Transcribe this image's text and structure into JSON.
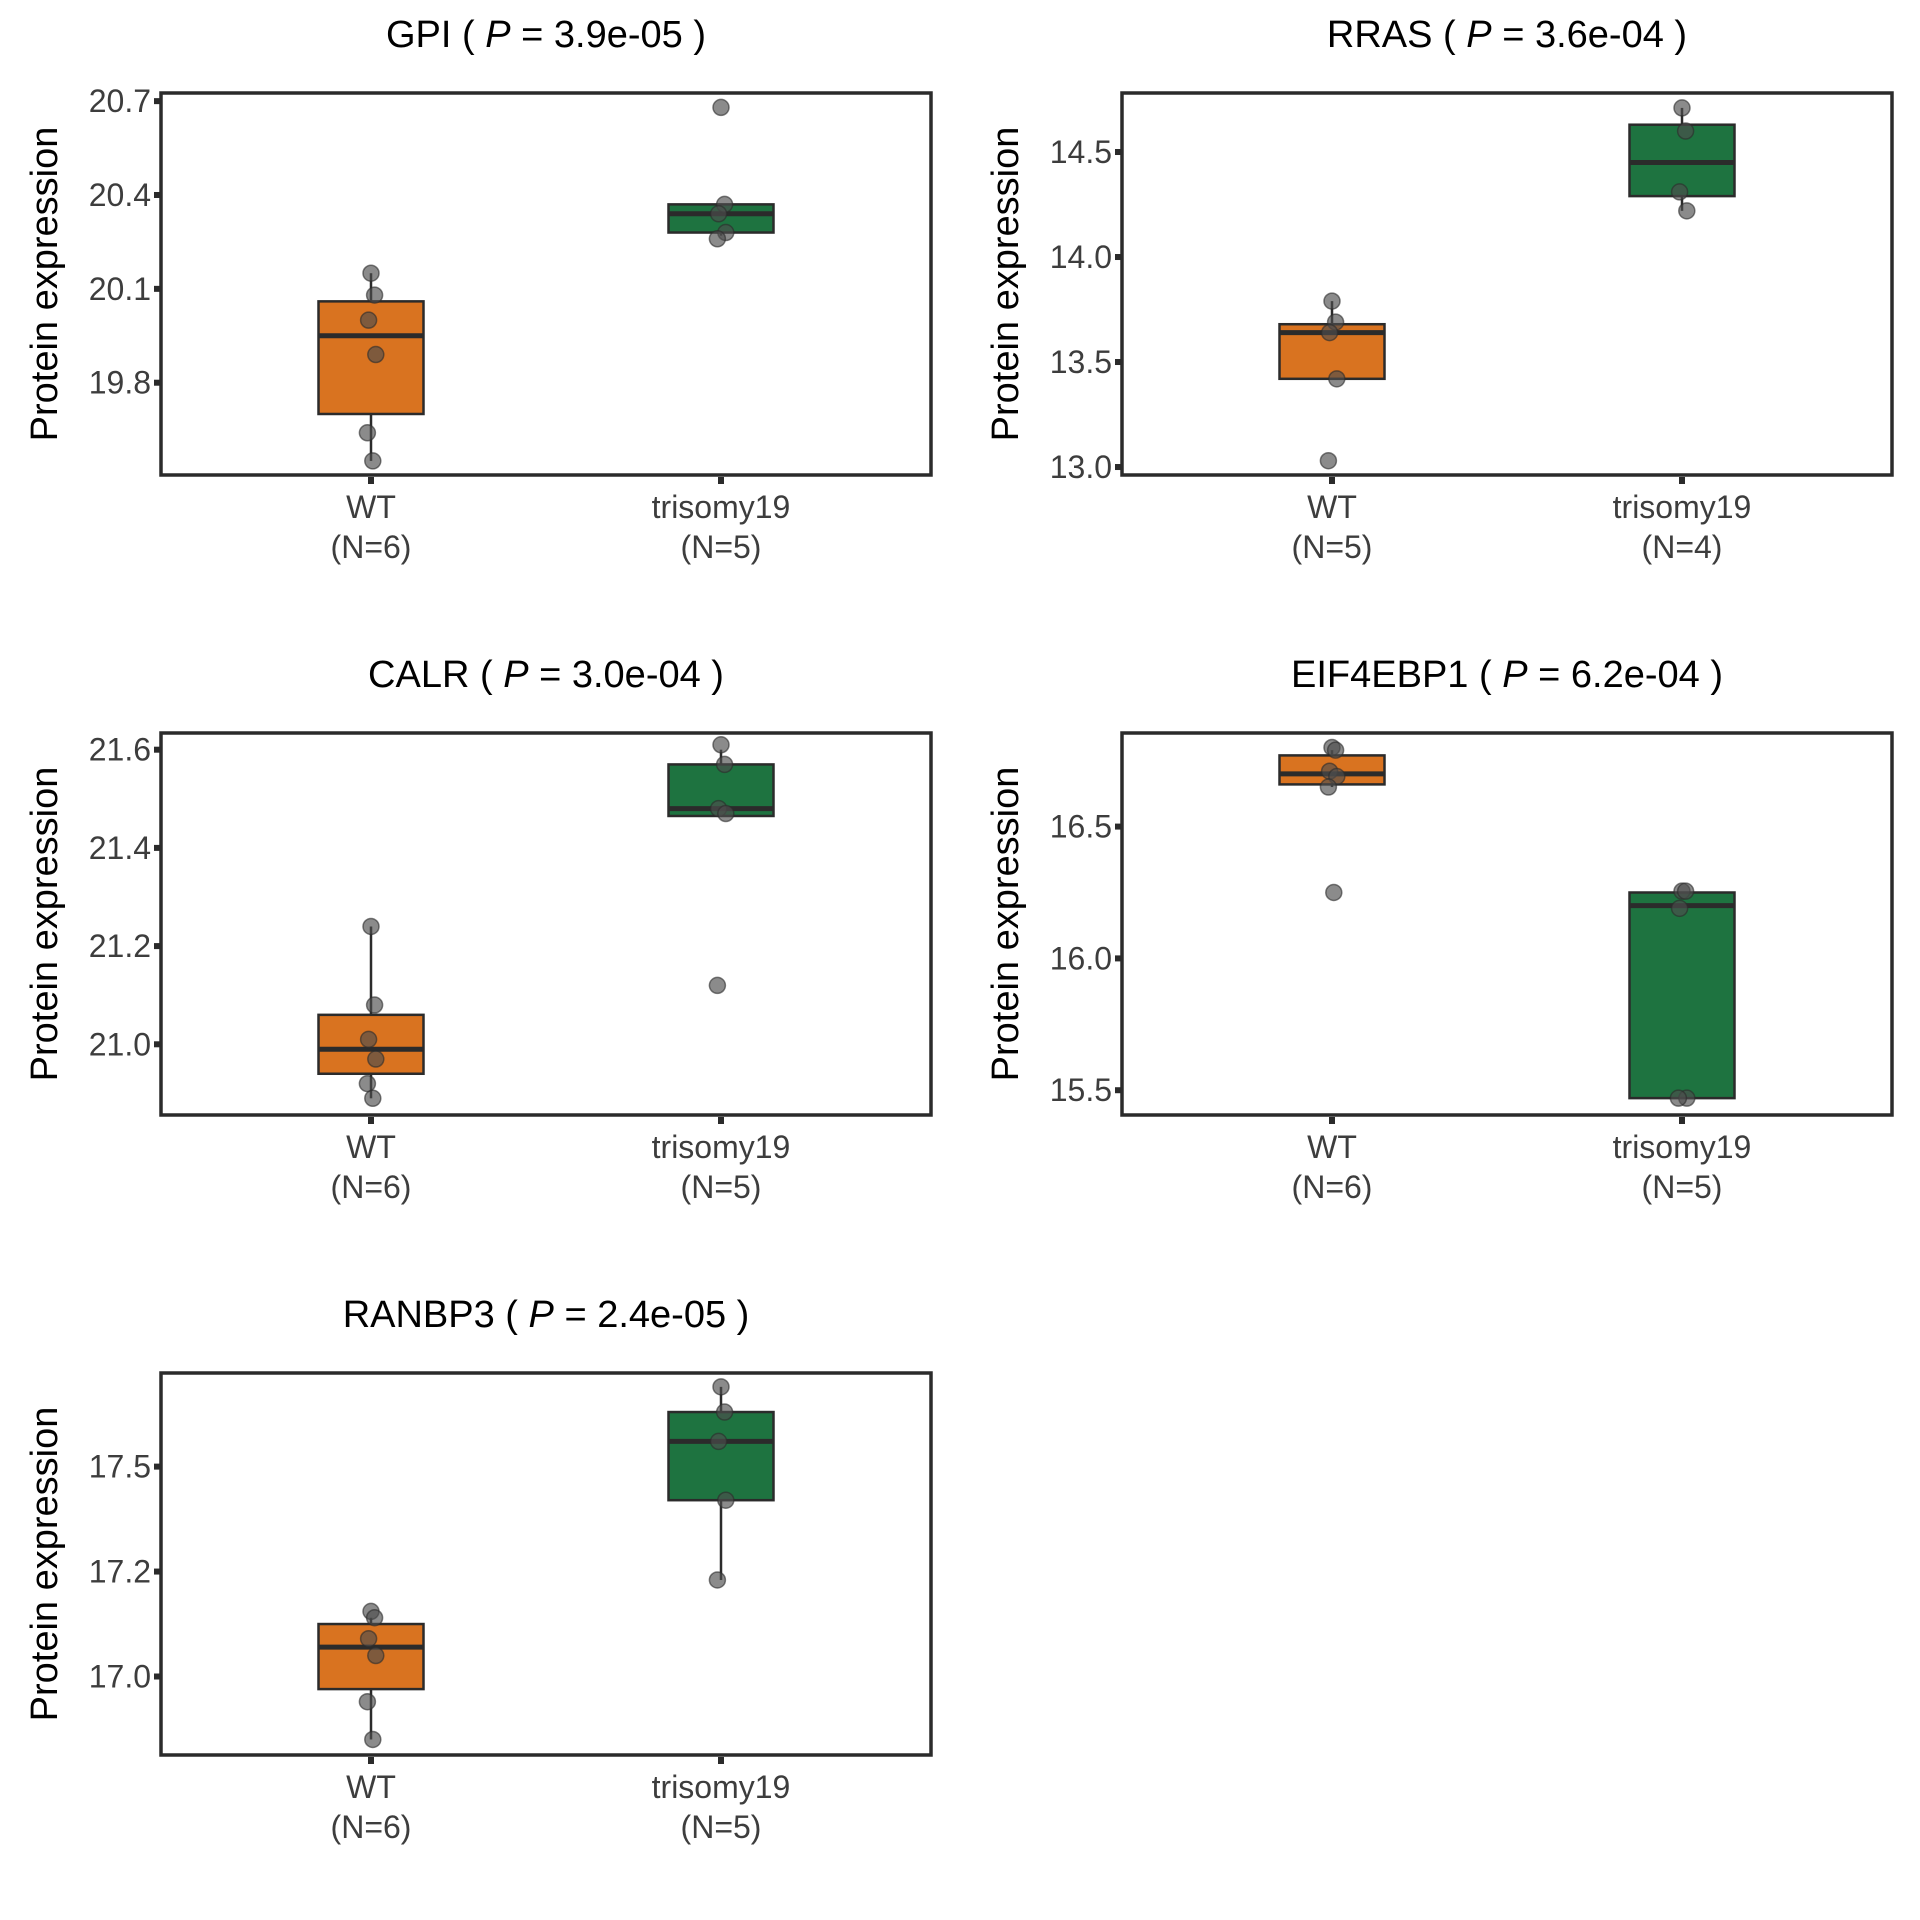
{
  "figure": {
    "colors": {
      "WT": "#d97320",
      "trisomy19": "#1e7340",
      "point": "#4d4d4d",
      "frame": "#2b2b2b"
    }
  },
  "chart_data": [
    {
      "type": "box",
      "gene": "GPI",
      "p_label": "P",
      "p_value": "3.9e-05",
      "ylabel": "Protein expression",
      "xlabel": "",
      "ylim": [
        19.505,
        20.726
      ],
      "yticks": [
        {
          "value": 19.8,
          "label": "19.8"
        },
        {
          "value": 20.1,
          "label": "20.1"
        },
        {
          "value": 20.4,
          "label": "20.4"
        },
        {
          "value": 20.7,
          "label": "20.7"
        }
      ],
      "groups": [
        {
          "name": "WT",
          "n_label": "(N=6)",
          "q1": 19.7,
          "median": 19.95,
          "q3": 20.06,
          "whisker_low": 19.55,
          "whisker_high": 20.15,
          "points": [
            20.15,
            20.08,
            20.0,
            19.89,
            19.64,
            19.55
          ]
        },
        {
          "name": "trisomy19",
          "n_label": "(N=5)",
          "q1": 20.28,
          "median": 20.34,
          "q3": 20.37,
          "whisker_low": 20.27,
          "whisker_high": 20.37,
          "points": [
            20.68,
            20.37,
            20.34,
            20.28,
            20.26
          ]
        }
      ]
    },
    {
      "type": "box",
      "gene": "RRAS",
      "p_label": "P",
      "p_value": "3.6e-04",
      "ylabel": "Protein expression",
      "xlabel": "",
      "ylim": [
        12.962,
        14.781
      ],
      "yticks": [
        {
          "value": 13.0,
          "label": "13.0"
        },
        {
          "value": 13.5,
          "label": "13.5"
        },
        {
          "value": 14.0,
          "label": "14.0"
        },
        {
          "value": 14.5,
          "label": "14.5"
        }
      ],
      "groups": [
        {
          "name": "WT",
          "n_label": "(N=5)",
          "q1": 13.42,
          "median": 13.64,
          "q3": 13.68,
          "whisker_low": 13.42,
          "whisker_high": 13.79,
          "points": [
            13.79,
            13.69,
            13.64,
            13.42,
            13.03
          ]
        },
        {
          "name": "trisomy19",
          "n_label": "(N=4)",
          "q1": 14.29,
          "median": 14.45,
          "q3": 14.63,
          "whisker_low": 14.22,
          "whisker_high": 14.71,
          "points": [
            14.71,
            14.6,
            14.31,
            14.22
          ]
        }
      ]
    },
    {
      "type": "box",
      "gene": "CALR",
      "p_label": "P",
      "p_value": "3.0e-04",
      "ylabel": "Protein expression",
      "xlabel": "",
      "ylim": [
        20.856,
        21.634
      ],
      "yticks": [
        {
          "value": 21.0,
          "label": "21.0"
        },
        {
          "value": 21.2,
          "label": "21.2"
        },
        {
          "value": 21.4,
          "label": "21.4"
        },
        {
          "value": 21.6,
          "label": "21.6"
        }
      ],
      "groups": [
        {
          "name": "WT",
          "n_label": "(N=6)",
          "q1": 20.94,
          "median": 20.99,
          "q3": 21.06,
          "whisker_low": 20.89,
          "whisker_high": 21.24,
          "points": [
            21.24,
            21.08,
            21.01,
            20.97,
            20.92,
            20.89
          ]
        },
        {
          "name": "trisomy19",
          "n_label": "(N=5)",
          "q1": 21.465,
          "median": 21.48,
          "q3": 21.57,
          "whisker_low": 21.465,
          "whisker_high": 21.6,
          "points": [
            21.61,
            21.57,
            21.48,
            21.47,
            21.12
          ]
        }
      ]
    },
    {
      "type": "box",
      "gene": "EIF4EBP1",
      "p_label": "P",
      "p_value": "6.2e-04",
      "ylabel": "Protein expression",
      "xlabel": "",
      "ylim": [
        15.406,
        16.855
      ],
      "yticks": [
        {
          "value": 15.5,
          "label": "15.5"
        },
        {
          "value": 16.0,
          "label": "16.0"
        },
        {
          "value": 16.5,
          "label": "16.5"
        }
      ],
      "groups": [
        {
          "name": "WT",
          "n_label": "(N=6)",
          "q1": 16.66,
          "median": 16.7,
          "q3": 16.77,
          "whisker_low": 16.65,
          "whisker_high": 16.79,
          "points": [
            16.8,
            16.79,
            16.71,
            16.69,
            16.65,
            16.25
          ]
        },
        {
          "name": "trisomy19",
          "n_label": "(N=5)",
          "q1": 15.47,
          "median": 16.2,
          "q3": 16.25,
          "whisker_low": 15.47,
          "whisker_high": 16.25,
          "points": [
            16.255,
            16.255,
            16.19,
            15.47,
            15.47
          ]
        }
      ]
    },
    {
      "type": "box",
      "gene": "RANBP3",
      "p_label": "P",
      "p_value": "2.4e-05",
      "ylabel": "Protein expression",
      "xlabel": "",
      "ylim": [
        16.813,
        17.723
      ],
      "yticks": [
        {
          "value": 17.0,
          "label": "17.0"
        },
        {
          "value": 17.25,
          "label": "17.2"
        },
        {
          "value": 17.5,
          "label": "17.5"
        }
      ],
      "groups": [
        {
          "name": "WT",
          "n_label": "(N=6)",
          "q1": 16.97,
          "median": 17.07,
          "q3": 17.125,
          "whisker_low": 16.85,
          "whisker_high": 17.14,
          "points": [
            17.155,
            17.14,
            17.09,
            17.05,
            16.94,
            16.85
          ]
        },
        {
          "name": "trisomy19",
          "n_label": "(N=5)",
          "q1": 17.42,
          "median": 17.56,
          "q3": 17.63,
          "whisker_low": 17.23,
          "whisker_high": 17.69,
          "points": [
            17.69,
            17.63,
            17.56,
            17.42,
            17.23
          ]
        }
      ]
    }
  ]
}
